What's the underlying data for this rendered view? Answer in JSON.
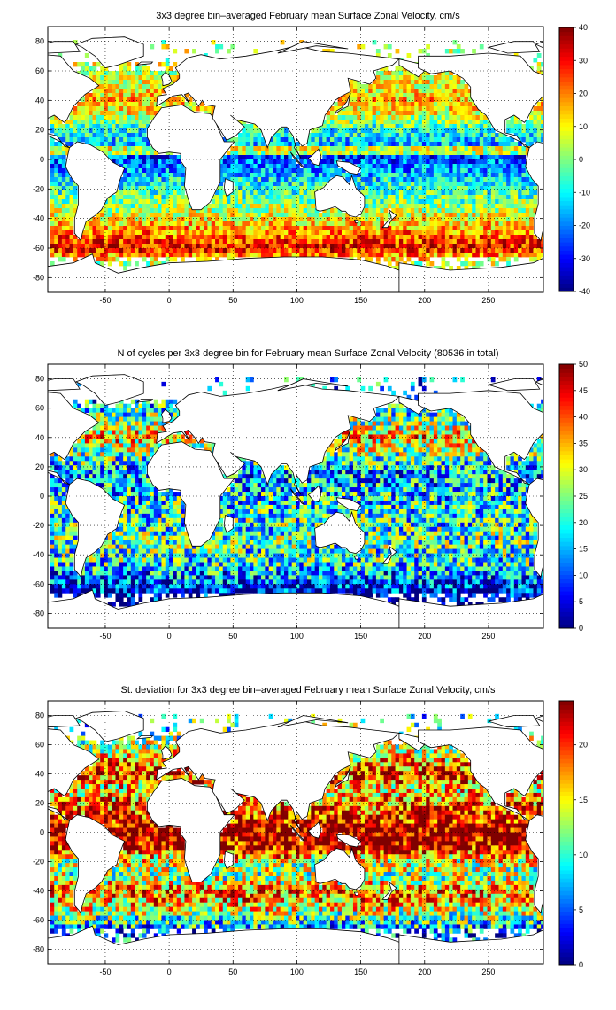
{
  "panels": [
    {
      "title": "3x3 degree bin–averaged February mean Surface Zonal Velocity, cm/s",
      "colorbar_ticks": [
        "40",
        "30",
        "20",
        "10",
        "0",
        "-10",
        "-20",
        "-30",
        "-40"
      ]
    },
    {
      "title": "N of cycles per 3x3 degree bin for February mean Surface Zonal Velocity (80536 in total)",
      "colorbar_ticks": [
        "50",
        "45",
        "40",
        "35",
        "30",
        "25",
        "20",
        "15",
        "10",
        "5",
        "0"
      ]
    },
    {
      "title": "St. deviation for 3x3 degree bin–averaged February mean Surface Zonal Velocity, cm/s",
      "colorbar_ticks": [
        "20",
        "15",
        "10",
        "5",
        "0"
      ]
    }
  ],
  "chart_data": [
    {
      "type": "heatmap",
      "title": "3x3 degree bin–averaged February mean Surface Zonal Velocity, cm/s",
      "xlabel": "",
      "ylabel": "",
      "xlim": [
        -95,
        293
      ],
      "ylim": [
        -90,
        90
      ],
      "xticks": [
        -50,
        0,
        50,
        100,
        150,
        200,
        250
      ],
      "yticks": [
        -80,
        -60,
        -40,
        -20,
        0,
        20,
        40,
        60,
        80
      ],
      "clim": [
        -40,
        40
      ],
      "colormap": "jet",
      "grid": "dotted",
      "zonal_profile": [
        {
          "lat": 70,
          "value": 5
        },
        {
          "lat": 50,
          "value": 8
        },
        {
          "lat": 40,
          "value": 15
        },
        {
          "lat": 30,
          "value": 8
        },
        {
          "lat": 20,
          "value": -8
        },
        {
          "lat": 10,
          "value": -15
        },
        {
          "lat": 6,
          "value": 20
        },
        {
          "lat": 2,
          "value": -25
        },
        {
          "lat": -5,
          "value": -20
        },
        {
          "lat": -15,
          "value": -10
        },
        {
          "lat": -30,
          "value": 0
        },
        {
          "lat": -45,
          "value": 15
        },
        {
          "lat": -55,
          "value": 25
        },
        {
          "lat": -60,
          "value": 30
        },
        {
          "lat": -70,
          "value": 5
        }
      ]
    },
    {
      "type": "heatmap",
      "title": "N of cycles per 3x3 degree bin for February mean Surface Zonal Velocity (80536 in total)",
      "xlabel": "",
      "ylabel": "",
      "xlim": [
        -95,
        293
      ],
      "ylim": [
        -90,
        90
      ],
      "xticks": [
        -50,
        0,
        50,
        100,
        150,
        200,
        250
      ],
      "yticks": [
        -80,
        -60,
        -40,
        -20,
        0,
        20,
        40,
        60,
        80
      ],
      "clim": [
        0,
        50
      ],
      "colormap": "jet",
      "grid": "dotted",
      "total_cycles": 80536,
      "zonal_profile": [
        {
          "lat": 70,
          "value": 12
        },
        {
          "lat": 50,
          "value": 25
        },
        {
          "lat": 40,
          "value": 35
        },
        {
          "lat": 30,
          "value": 25
        },
        {
          "lat": 15,
          "value": 14
        },
        {
          "lat": 0,
          "value": 18
        },
        {
          "lat": -15,
          "value": 20
        },
        {
          "lat": -30,
          "value": 22
        },
        {
          "lat": -45,
          "value": 20
        },
        {
          "lat": -55,
          "value": 12
        },
        {
          "lat": -62,
          "value": 6
        },
        {
          "lat": -70,
          "value": 3
        }
      ]
    },
    {
      "type": "heatmap",
      "title": "St. deviation for 3x3 degree bin–averaged February mean Surface Zonal Velocity, cm/s",
      "xlabel": "",
      "ylabel": "",
      "xlim": [
        -95,
        293
      ],
      "ylim": [
        -90,
        90
      ],
      "xticks": [
        -50,
        0,
        50,
        100,
        150,
        200,
        250
      ],
      "yticks": [
        -80,
        -60,
        -40,
        -20,
        0,
        20,
        40,
        60,
        80
      ],
      "clim": [
        0,
        24
      ],
      "colormap": "jet",
      "grid": "dotted",
      "zonal_profile": [
        {
          "lat": 70,
          "value": 10
        },
        {
          "lat": 50,
          "value": 16
        },
        {
          "lat": 40,
          "value": 21
        },
        {
          "lat": 30,
          "value": 15
        },
        {
          "lat": 20,
          "value": 18
        },
        {
          "lat": 0,
          "value": 24
        },
        {
          "lat": -10,
          "value": 22
        },
        {
          "lat": -20,
          "value": 14
        },
        {
          "lat": -30,
          "value": 12
        },
        {
          "lat": -40,
          "value": 18
        },
        {
          "lat": -50,
          "value": 16
        },
        {
          "lat": -60,
          "value": 10
        },
        {
          "lat": -70,
          "value": 5
        }
      ]
    }
  ]
}
